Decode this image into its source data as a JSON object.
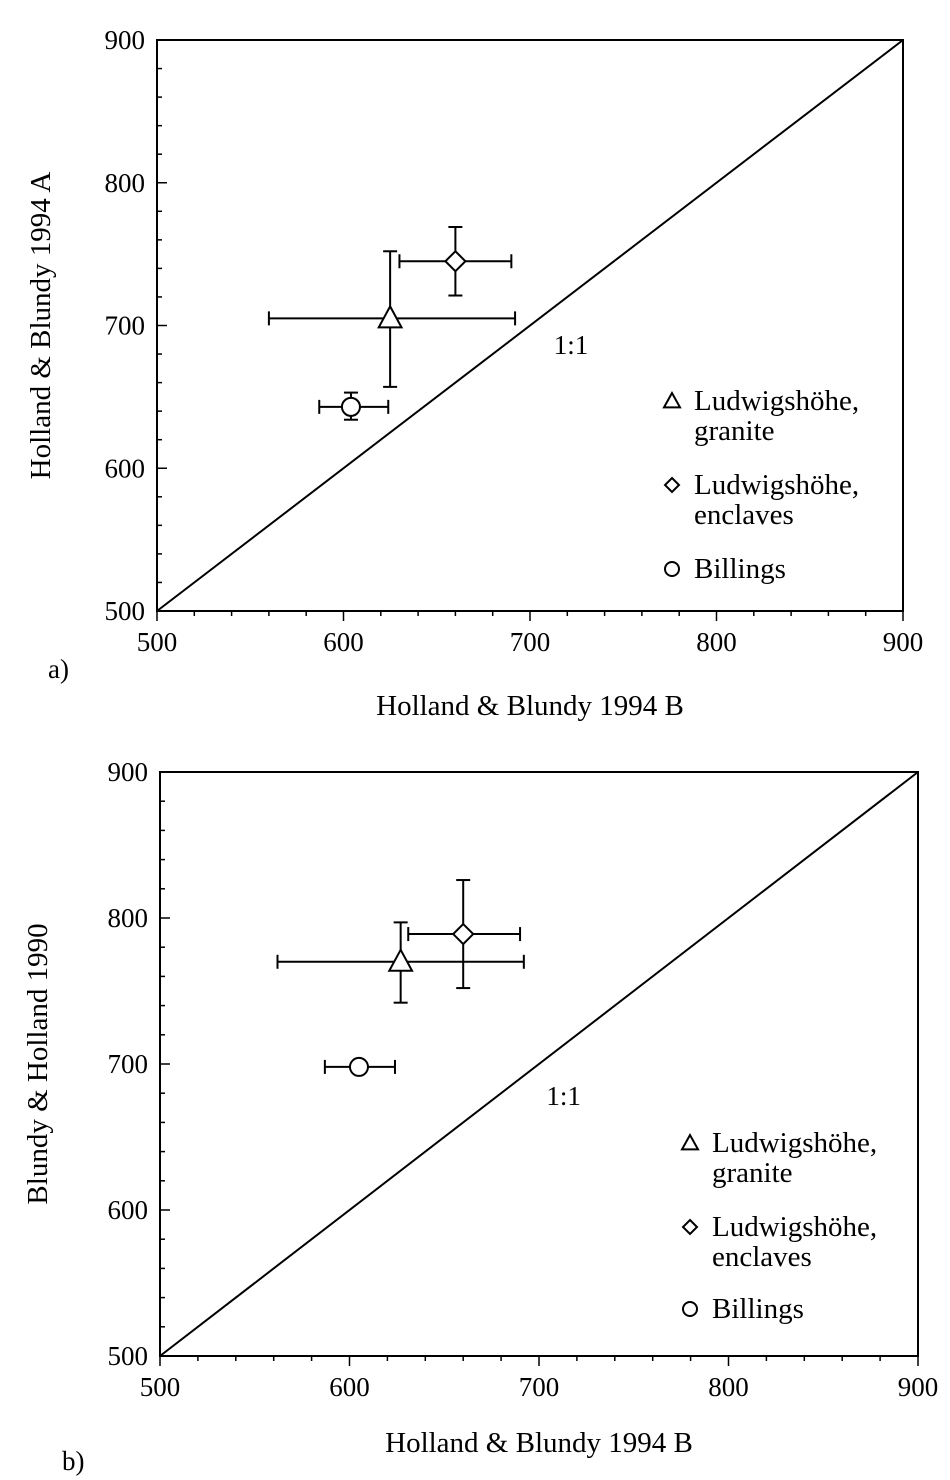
{
  "chart_data": [
    {
      "type": "scatter",
      "panel_label": "a)",
      "xlabel": "Holland & Blundy 1994 B",
      "ylabel": "Holland & Blundy 1994 A",
      "xlim": [
        500,
        900
      ],
      "ylim": [
        500,
        900
      ],
      "xticks": [
        500,
        600,
        700,
        800,
        900
      ],
      "yticks": [
        500,
        600,
        700,
        800,
        900
      ],
      "grid": false,
      "legend_position": "lower-right",
      "reference_line": {
        "from": [
          500,
          500
        ],
        "to": [
          900,
          900
        ],
        "label": "1:1",
        "label_at": [
          722,
          680
        ]
      },
      "series": [
        {
          "name": "Ludwigshöhe, granite",
          "name_line1": "Ludwigshöhe,",
          "name_line2": "granite",
          "marker": "triangle",
          "x": 625,
          "y": 705,
          "x_err": [
            560,
            692
          ],
          "y_err": [
            657,
            752
          ]
        },
        {
          "name": "Ludwigshöhe, enclaves",
          "name_line1": "Ludwigshöhe,",
          "name_line2": "enclaves",
          "marker": "diamond",
          "x": 660,
          "y": 745,
          "x_err": [
            630,
            690
          ],
          "y_err": [
            721,
            769
          ]
        },
        {
          "name": "Billings",
          "name_line1": "Billings",
          "name_line2": "",
          "marker": "circle",
          "x": 604,
          "y": 643,
          "x_err": [
            587,
            624
          ],
          "y_err": [
            634,
            653
          ]
        }
      ]
    },
    {
      "type": "scatter",
      "panel_label": "b)",
      "xlabel": "Holland & Blundy 1994 B",
      "ylabel": "Blundy & Holland 1990",
      "xlim": [
        500,
        900
      ],
      "ylim": [
        500,
        900
      ],
      "xticks": [
        500,
        600,
        700,
        800,
        900
      ],
      "yticks": [
        500,
        600,
        700,
        800,
        900
      ],
      "grid": false,
      "legend_position": "lower-right",
      "reference_line": {
        "from": [
          500,
          500
        ],
        "to": [
          900,
          900
        ],
        "label": "1:1",
        "label_at": [
          713,
          672
        ]
      },
      "series": [
        {
          "name": "Ludwigshöhe, granite",
          "name_line1": "Ludwigshöhe,",
          "name_line2": "granite",
          "marker": "triangle",
          "x": 627,
          "y": 770,
          "x_err": [
            562,
            692
          ],
          "y_err": [
            742,
            797
          ]
        },
        {
          "name": "Ludwigshöhe, enclaves",
          "name_line1": "Ludwigshöhe,",
          "name_line2": "enclaves",
          "marker": "diamond",
          "x": 660,
          "y": 789,
          "x_err": [
            631,
            690
          ],
          "y_err": [
            752,
            826
          ]
        },
        {
          "name": "Billings",
          "name_line1": "Billings",
          "name_line2": "",
          "marker": "circle",
          "x": 605,
          "y": 698,
          "x_err": [
            587,
            624
          ],
          "y_err": [
            698,
            698
          ]
        }
      ]
    }
  ]
}
